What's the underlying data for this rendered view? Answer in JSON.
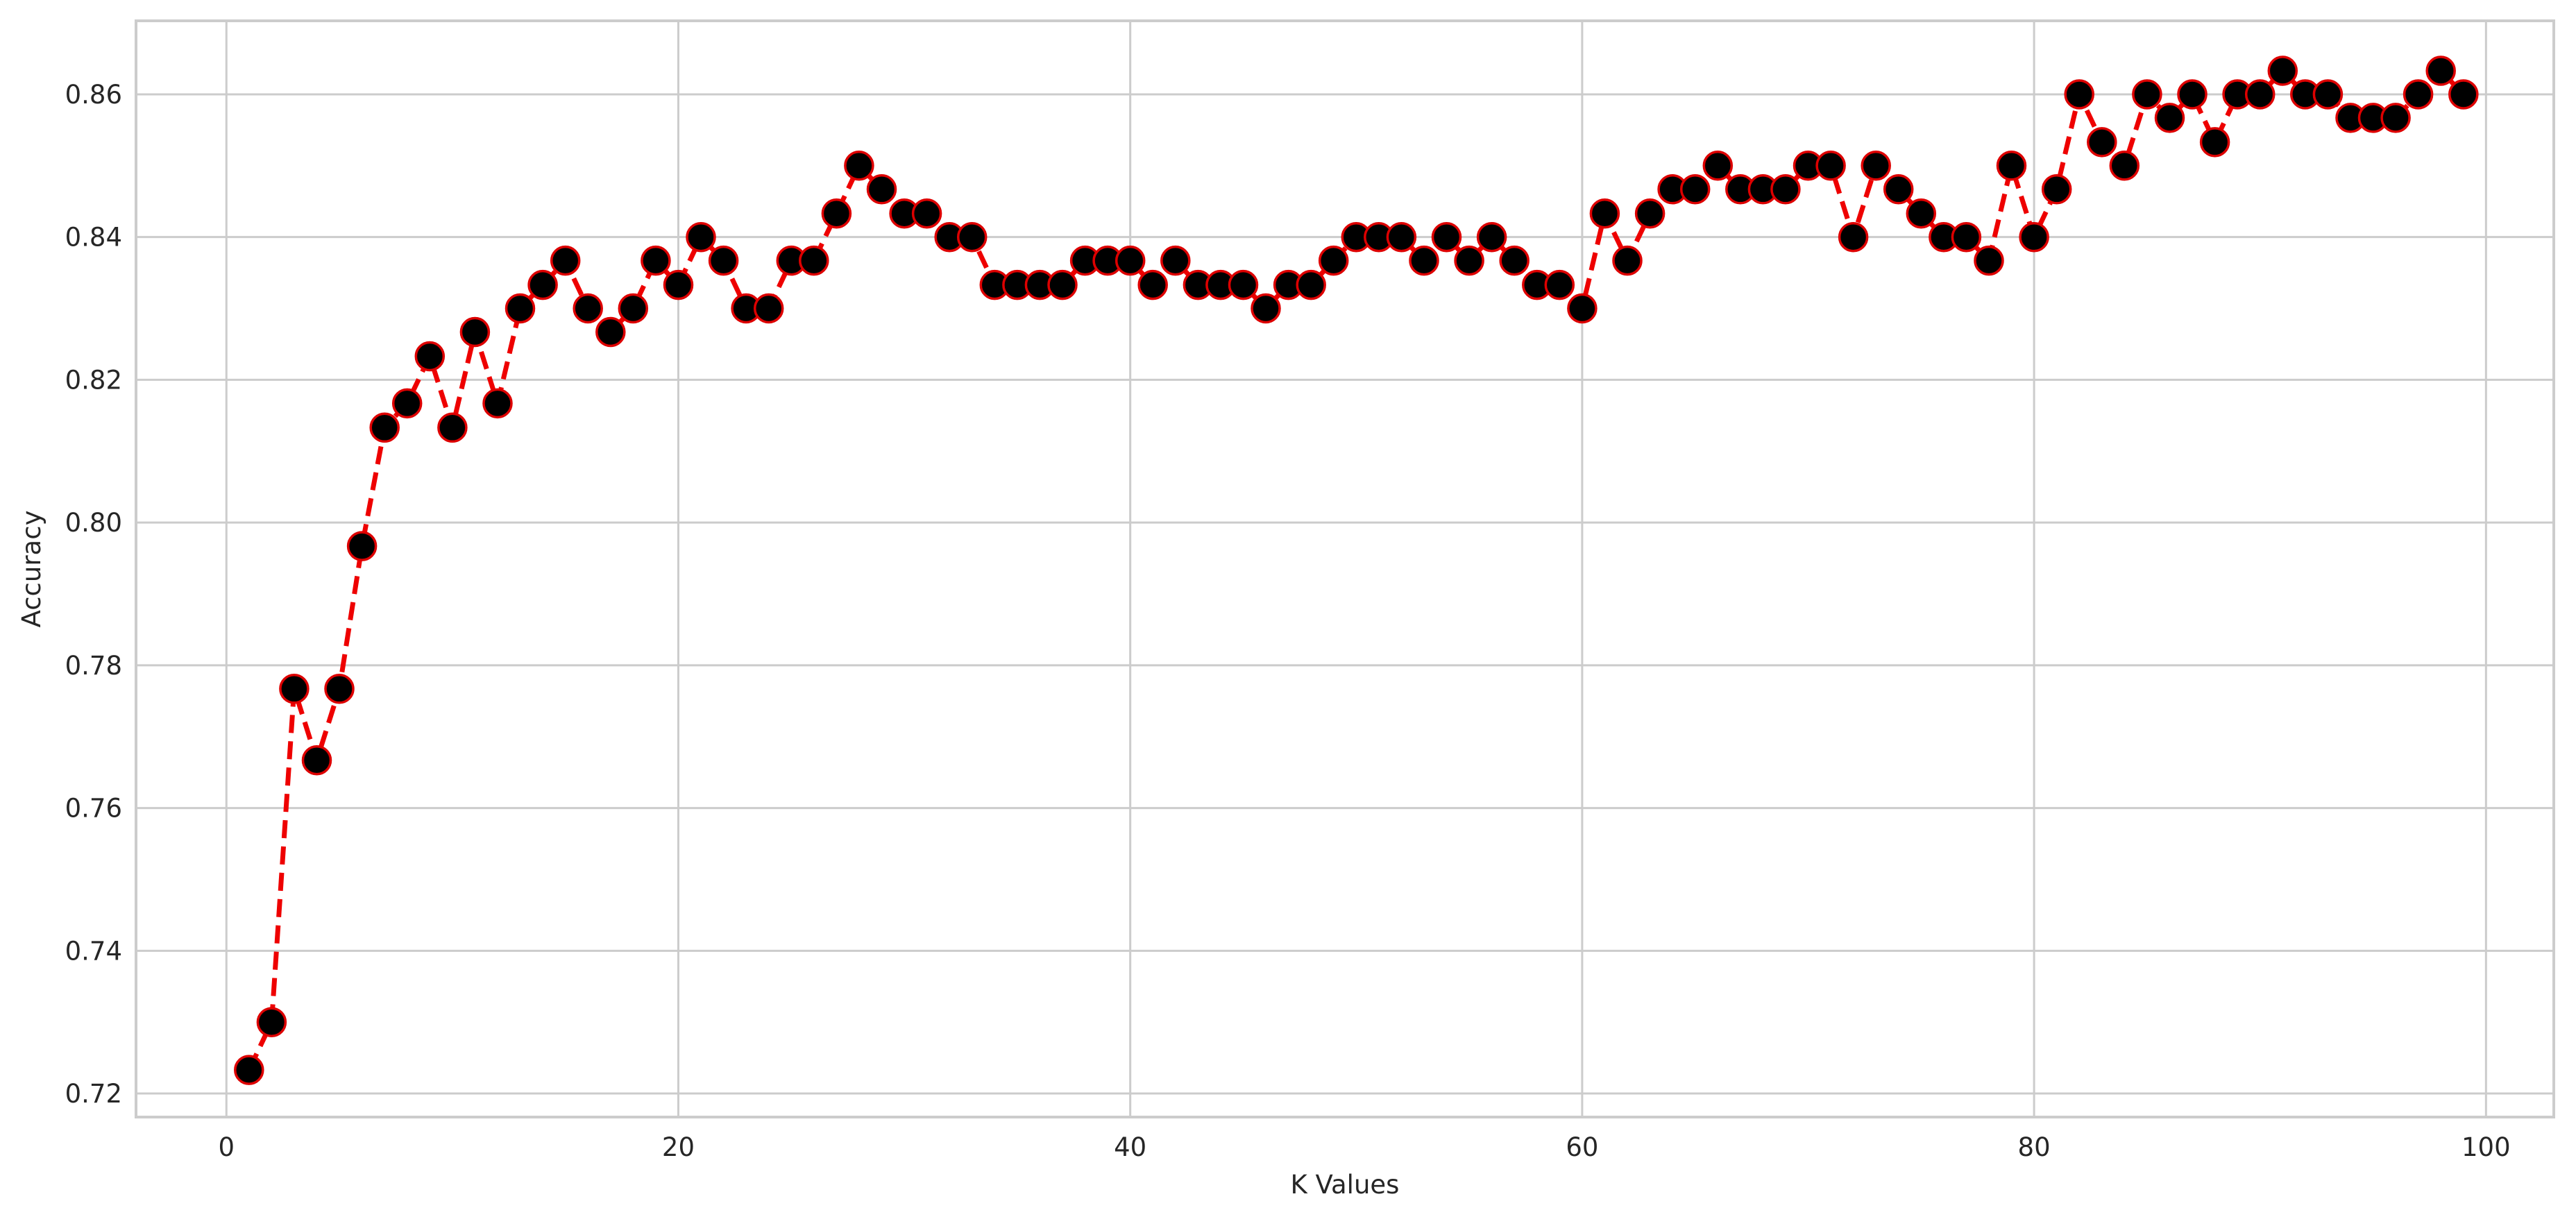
{
  "chart_data": {
    "type": "line",
    "title": "",
    "xlabel": "K Values",
    "ylabel": "Accuracy",
    "xlim": [
      -4,
      103
    ],
    "ylim": [
      0.7167,
      0.8703
    ],
    "x_ticks": [
      0,
      20,
      40,
      60,
      80,
      100
    ],
    "y_ticks": [
      0.72,
      0.74,
      0.76,
      0.78,
      0.8,
      0.82,
      0.84,
      0.86
    ],
    "y_tick_labels": [
      "0.72",
      "0.74",
      "0.76",
      "0.78",
      "0.80",
      "0.82",
      "0.84",
      "0.86"
    ],
    "grid": true,
    "line_color": "#ee0000",
    "line_style": "dashed",
    "marker_face_color": "#000000",
    "marker_edge_color": "#dd0000",
    "series": [
      {
        "x": [
          1,
          2,
          3,
          4,
          5,
          6,
          7,
          8,
          9,
          10,
          11,
          12,
          13,
          14,
          15,
          16,
          17,
          18,
          19,
          20,
          21,
          22,
          23,
          24,
          25,
          26,
          27,
          28,
          29,
          30,
          31,
          32,
          33,
          34,
          35,
          36,
          37,
          38,
          39,
          40,
          41,
          42,
          43,
          44,
          45,
          46,
          47,
          48,
          49,
          50,
          51,
          52,
          53,
          54,
          55,
          56,
          57,
          58,
          59,
          60,
          61,
          62,
          63,
          64,
          65,
          66,
          67,
          68,
          69,
          70,
          71,
          72,
          73,
          74,
          75,
          76,
          77,
          78,
          79,
          80,
          81,
          82,
          83,
          84,
          85,
          86,
          87,
          88,
          89,
          90,
          91,
          92,
          93,
          94,
          95,
          96,
          97,
          98,
          99
        ],
        "values": [
          0.7233,
          0.73,
          0.7767,
          0.7667,
          0.7767,
          0.7967,
          0.8133,
          0.8167,
          0.8233,
          0.8133,
          0.8267,
          0.8167,
          0.83,
          0.8333,
          0.8367,
          0.83,
          0.8267,
          0.83,
          0.8367,
          0.8333,
          0.84,
          0.8367,
          0.83,
          0.83,
          0.8367,
          0.8367,
          0.8433,
          0.85,
          0.8467,
          0.8433,
          0.8433,
          0.84,
          0.84,
          0.8333,
          0.8333,
          0.8333,
          0.8333,
          0.8367,
          0.8367,
          0.8367,
          0.8333,
          0.8367,
          0.8333,
          0.8333,
          0.8333,
          0.83,
          0.8333,
          0.8333,
          0.8367,
          0.84,
          0.84,
          0.84,
          0.8367,
          0.84,
          0.8367,
          0.84,
          0.8367,
          0.8333,
          0.8333,
          0.83,
          0.8433,
          0.8367,
          0.8433,
          0.8467,
          0.8467,
          0.85,
          0.8467,
          0.8467,
          0.8467,
          0.85,
          0.85,
          0.84,
          0.85,
          0.8467,
          0.8433,
          0.84,
          0.84,
          0.8367,
          0.85,
          0.84,
          0.8467,
          0.86,
          0.8533,
          0.85,
          0.86,
          0.8567,
          0.86,
          0.8533,
          0.86,
          0.86,
          0.8633,
          0.86,
          0.86,
          0.8567,
          0.8567,
          0.8567,
          0.86,
          0.8633,
          0.86
        ]
      }
    ]
  }
}
